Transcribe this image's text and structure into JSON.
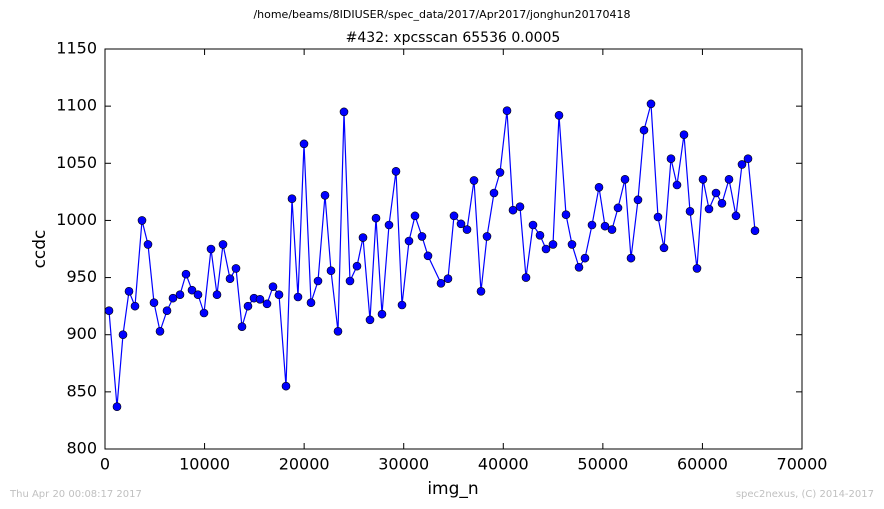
{
  "chart_data": {
    "type": "line",
    "suptitle": "/home/beams/8IDIUSER/spec_data/2017/Apr2017/jonghun20170418",
    "title": "#432: xpcsscan 65536 0.0005",
    "footer_left": "Thu Apr 20 00:08:17 2017",
    "footer_right": "spec2nexus, (C) 2014-2017",
    "x_label": "img_n",
    "y_label": "ccdc",
    "xlim": [
      0,
      70000
    ],
    "ylim": [
      800,
      1150
    ],
    "xticks": [
      0,
      10000,
      20000,
      30000,
      40000,
      50000,
      60000,
      70000
    ],
    "yticks": [
      800,
      850,
      900,
      950,
      1000,
      1050,
      1100,
      1150
    ],
    "grid": false,
    "series": [
      {
        "name": "ccdc",
        "color": "#0000ff",
        "x": [
          402,
          1205,
          1808,
          2410,
          3013,
          3716,
          4318,
          4921,
          5524,
          6227,
          6829,
          7532,
          8135,
          8737,
          9340,
          9943,
          10646,
          11248,
          11851,
          12554,
          13156,
          13759,
          14361,
          14964,
          15567,
          16270,
          16872,
          17475,
          18178,
          18780,
          19383,
          19986,
          20689,
          21392,
          22095,
          22697,
          23400,
          24003,
          24605,
          25308,
          25911,
          26614,
          27217,
          27819,
          28522,
          29225,
          29828,
          30531,
          31133,
          31836,
          32439,
          33744,
          34447,
          35050,
          35753,
          36356,
          37059,
          37762,
          38364,
          39067,
          39670,
          40373,
          40975,
          41678,
          42281,
          42984,
          43687,
          44290,
          44993,
          45595,
          46298,
          46901,
          47604,
          48206,
          48909,
          49612,
          50215,
          50918,
          51521,
          52224,
          52826,
          53529,
          54132,
          54835,
          55538,
          56140,
          56843,
          57446,
          58149,
          58752,
          59455,
          60057,
          60660,
          61363,
          61965,
          62668,
          63371,
          63974,
          64577,
          65280
        ],
        "values": [
          921,
          837,
          900,
          938,
          925,
          1000,
          979,
          928,
          903,
          921,
          932,
          935,
          953,
          939,
          935,
          919,
          975,
          935,
          979,
          949,
          958,
          907,
          925,
          932,
          931,
          927,
          942,
          935,
          855,
          1019,
          933,
          1067,
          928,
          947,
          1022,
          956,
          903,
          1095,
          947,
          960,
          985,
          913,
          1002,
          918,
          996,
          1043,
          926,
          982,
          1004,
          986,
          969,
          945,
          949,
          1004,
          997,
          992,
          1035,
          938,
          986,
          1024,
          1042,
          1096,
          1009,
          1012,
          950,
          996,
          987,
          975,
          979,
          1092,
          1005,
          979,
          959,
          967,
          996,
          1029,
          995,
          992,
          1011,
          1036,
          967,
          1018,
          1079,
          1102,
          1003,
          976,
          1054,
          1031,
          1075,
          1008,
          958,
          1036,
          1010,
          1024,
          1015,
          1036,
          1004,
          1049,
          1054,
          991
        ]
      }
    ]
  }
}
